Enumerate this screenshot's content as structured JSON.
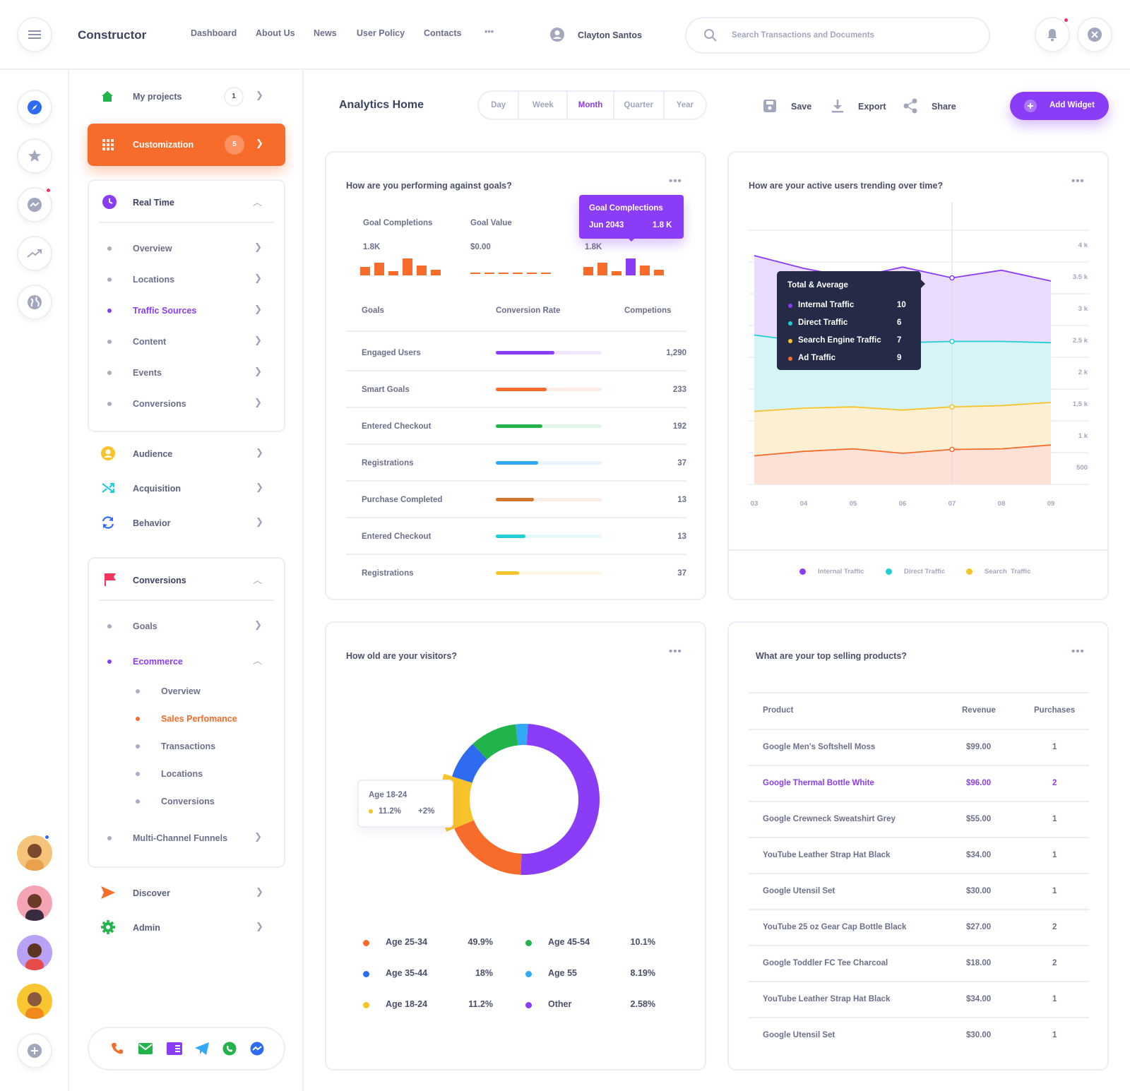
{
  "app": {
    "title": "Constructor"
  },
  "topnav": {
    "items": [
      "Dashboard",
      "About Us",
      "News",
      "User Policy",
      "Contacts"
    ],
    "more": "•••"
  },
  "user": {
    "name": "Clayton Santos"
  },
  "search": {
    "placeholder": "Search Transactions and Documents"
  },
  "sidebar": {
    "my_projects": {
      "label": "My projects",
      "badge": "1"
    },
    "customization": {
      "label": "Customization",
      "badge": "5"
    },
    "realtime": {
      "label": "Real Time",
      "items": [
        "Overview",
        "Locations",
        "Traffic Sources",
        "Content",
        "Events",
        "Conversions"
      ],
      "active": "Traffic Sources"
    },
    "audience": "Audience",
    "acquisition": "Acquisition",
    "behavior": "Behavior",
    "conversions": {
      "label": "Conversions",
      "goals": "Goals",
      "ecommerce": "Ecommerce",
      "ecommerce_items": [
        "Overview",
        "Sales Perfomance",
        "Transactions",
        "Locations",
        "Conversions"
      ],
      "multichannel": "Multi-Channel Funnels"
    },
    "discover": "Discover",
    "admin": "Admin"
  },
  "header": {
    "title": "Analytics Home",
    "periods": [
      "Day",
      "Week",
      "Month",
      "Quarter",
      "Year"
    ],
    "active_period": "Month",
    "save": "Save",
    "export": "Export",
    "share": "Share",
    "add_widget": "Add Widget"
  },
  "goals_card": {
    "title": "How are you performing against goals?",
    "more": "•••",
    "metrics": [
      {
        "label": "Goal Completions",
        "value": "1.8K"
      },
      {
        "label": "Goal Value",
        "value": "$0.00"
      },
      {
        "label": "",
        "value": "1.8K"
      }
    ],
    "tooltip": {
      "title": "Goal Complections",
      "date": "Jun 2043",
      "value": "1.8 K"
    },
    "table_headers": [
      "Goals",
      "Conversion Rate",
      "Competions"
    ],
    "rows": [
      {
        "goal": "Engaged Users",
        "rate": 0.55,
        "color": "#8b3cf7",
        "value": "1,290"
      },
      {
        "goal": "Smart Goals",
        "rate": 0.48,
        "color": "#f76b2b",
        "value": "233"
      },
      {
        "goal": "Entered Checkout",
        "rate": 0.44,
        "color": "#22b34a",
        "value": "192"
      },
      {
        "goal": "Registrations",
        "rate": 0.4,
        "color": "#31a9f5",
        "value": "37"
      },
      {
        "goal": "Purchase Completed",
        "rate": 0.36,
        "color": "#d2762f",
        "value": "13"
      },
      {
        "goal": "Entered Checkout",
        "rate": 0.28,
        "color": "#23cfd6",
        "value": "13"
      },
      {
        "goal": "Registrations",
        "rate": 0.22,
        "color": "#f7c32b",
        "value": "37"
      }
    ]
  },
  "users_card": {
    "title": "How are your active users trending over time?",
    "more": "•••",
    "tooltip": {
      "title": "Total & Average",
      "rows": [
        {
          "label": "Internal Traffic",
          "value": "10",
          "color": "#8b3cf7"
        },
        {
          "label": "Direct Traffic",
          "value": "6",
          "color": "#23cfd6"
        },
        {
          "label": "Search Engine Traffic",
          "value": "7",
          "color": "#f7c32b"
        },
        {
          "label": "Ad Traffic",
          "value": "9",
          "color": "#f76b2b"
        }
      ]
    },
    "legend": [
      {
        "label": "Internal Traffic",
        "color": "#8b3cf7"
      },
      {
        "label": "Direct Traffic",
        "color": "#23cfd6"
      },
      {
        "label": "Search  Traffic",
        "color": "#f7c32b"
      }
    ]
  },
  "chart_data": [
    {
      "type": "area",
      "x": [
        "03",
        "04",
        "05",
        "06",
        "07",
        "08",
        "09"
      ],
      "y_ticks": [
        "4 k",
        "3.5 k",
        "3 k",
        "2.5 k",
        "2 k",
        "1,5 k",
        "1 k",
        "500"
      ],
      "ylim": [
        0,
        4000
      ],
      "series": [
        {
          "name": "Internal Traffic",
          "color": "#8b3cf7",
          "fill": "#e9dcfc",
          "values": [
            3600,
            3400,
            3250,
            3420,
            3250,
            3370,
            3200
          ]
        },
        {
          "name": "Direct Traffic",
          "color": "#23cfd6",
          "fill": "#d6f3f6",
          "values": [
            2350,
            2250,
            2250,
            2230,
            2250,
            2250,
            2230
          ]
        },
        {
          "name": "Search  Traffic",
          "color": "#f7c32b",
          "fill": "#fdf0d2",
          "values": [
            1150,
            1200,
            1220,
            1170,
            1220,
            1240,
            1290
          ]
        },
        {
          "name": "Ad Traffic",
          "color": "#f76b2b",
          "fill": "#fde0d6",
          "values": [
            450,
            520,
            560,
            490,
            550,
            560,
            620
          ]
        }
      ]
    },
    {
      "type": "pie",
      "categories": [
        "Age 25-34",
        "Age 35-44",
        "Age 18-24",
        "Age 45-54",
        "Age 55",
        "Other"
      ],
      "values": [
        49.9,
        18,
        11.2,
        10.1,
        8.19,
        2.58
      ]
    }
  ],
  "visitors_card": {
    "title": "How old are your visitors?",
    "more": "•••",
    "callout": {
      "label": "Age 18-24",
      "value": "11.2%",
      "change": "+2%"
    },
    "legend": [
      {
        "label": "Age 25-34",
        "value": "49.9%",
        "color": "#f76b2b"
      },
      {
        "label": "Age 35-44",
        "value": "18%",
        "color": "#2f6bf0"
      },
      {
        "label": "Age 18-24",
        "value": "11.2%",
        "color": "#f7c32b"
      },
      {
        "label": "Age 45-54",
        "value": "10.1%",
        "color": "#22b34a"
      },
      {
        "label": "Age 55",
        "value": "8.19%",
        "color": "#31a9f5"
      },
      {
        "label": "Other",
        "value": "2.58%",
        "color": "#8b3cf7"
      }
    ]
  },
  "products_card": {
    "title": "What are your top selling products?",
    "more": "•••",
    "headers": [
      "Product",
      "Revenue",
      "Purchases"
    ],
    "rows": [
      [
        "Google Men's Softshell Moss",
        "$99.00",
        "1"
      ],
      [
        "Google Thermal Bottle White",
        "$96.00",
        "2"
      ],
      [
        "Google Crewneck Sweatshirt Grey",
        "$55.00",
        "1"
      ],
      [
        "YouTube Leather Strap Hat Black",
        "$34.00",
        "1"
      ],
      [
        "Google Utensil Set",
        "$30.00",
        "1"
      ],
      [
        "YouTube 25 oz Gear Cap Bottle Black",
        "$27.00",
        "2"
      ],
      [
        "Google Toddler FC Tee Charcoal",
        "$18.00",
        "2"
      ],
      [
        "YouTube Leather Strap Hat Black",
        "$34.00",
        "1"
      ],
      [
        "Google Utensil Set",
        "$30.00",
        "1"
      ]
    ],
    "highlight_row": 1
  }
}
